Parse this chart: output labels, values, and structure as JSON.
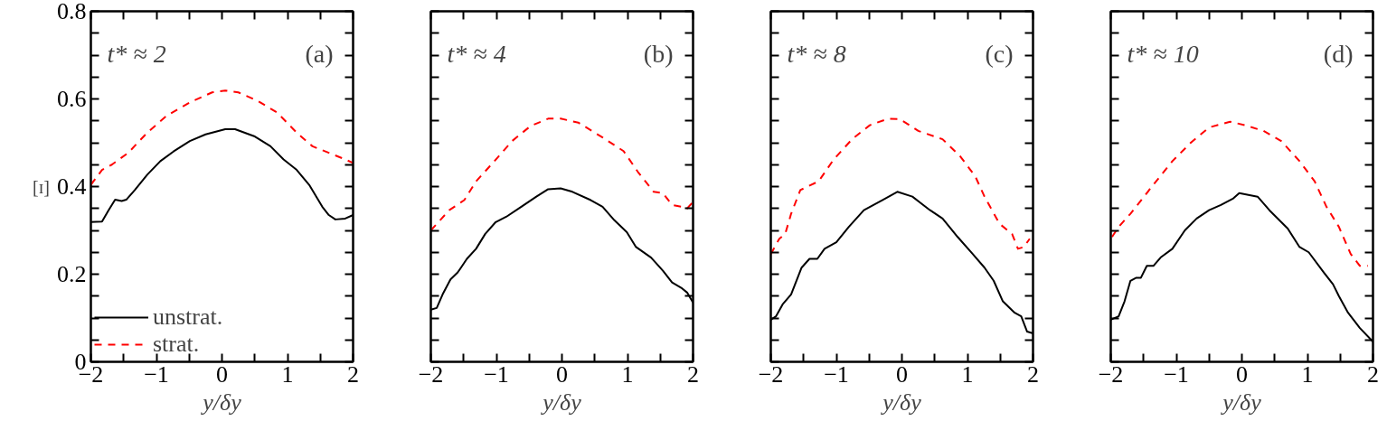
{
  "chart_data": [
    {
      "type": "line",
      "ylabel": "[ɪ]",
      "xlabel": "y/δy",
      "annotations": [
        "t* ≈ 2",
        "(a)"
      ],
      "xlim": [
        -2,
        2
      ],
      "ylim": [
        0,
        0.8
      ],
      "xticks": [
        -2,
        {
          "value": -1.5,
          "label": null
        },
        -1,
        {
          "value": -0.5,
          "label": null
        },
        0,
        {
          "value": 0.5,
          "label": null
        },
        1,
        {
          "value": 1.5,
          "label": null
        },
        2
      ],
      "yticks": [
        0,
        {
          "value": 0.05,
          "label": null
        },
        {
          "value": 0.1,
          "label": null
        },
        {
          "value": 0.15,
          "label": null
        },
        0.2,
        {
          "value": 0.25,
          "label": null
        },
        {
          "value": 0.3,
          "label": null
        },
        {
          "value": 0.35,
          "label": null
        },
        0.4,
        {
          "value": 0.45,
          "label": null
        },
        {
          "value": 0.5,
          "label": null
        },
        {
          "value": 0.55,
          "label": null
        },
        0.6,
        {
          "value": 0.65,
          "label": null
        },
        {
          "value": 0.7,
          "label": null
        },
        {
          "value": 0.75,
          "label": null
        },
        0.8
      ],
      "grid": false,
      "legend": "bottom left",
      "series": [
        {
          "name": "unstrat.",
          "color": "#000000",
          "line_style": "solid",
          "x": [
            -2,
            -1.83,
            -1.73,
            -1.63,
            -1.53,
            -1.46,
            -1.33,
            -1.14,
            -0.94,
            -0.74,
            -0.49,
            -0.25,
            0.05,
            0.2,
            0.49,
            0.74,
            0.94,
            1.14,
            1.33,
            1.53,
            1.63,
            1.73,
            1.88,
            2
          ],
          "values": [
            0.319,
            0.32,
            0.346,
            0.37,
            0.367,
            0.37,
            0.392,
            0.427,
            0.458,
            0.48,
            0.504,
            0.519,
            0.531,
            0.531,
            0.515,
            0.492,
            0.462,
            0.438,
            0.404,
            0.354,
            0.335,
            0.325,
            0.327,
            0.335
          ]
        },
        {
          "name": "strat.",
          "color": "#ff0000",
          "line_style": "dashed",
          "x": [
            -2,
            -1.83,
            -1.68,
            -1.43,
            -1.14,
            -0.84,
            -0.49,
            -0.15,
            0.05,
            0.25,
            0.54,
            0.84,
            1.14,
            1.38,
            1.63,
            1.83,
            2
          ],
          "values": [
            0.404,
            0.438,
            0.45,
            0.477,
            0.523,
            0.562,
            0.592,
            0.615,
            0.619,
            0.615,
            0.596,
            0.569,
            0.523,
            0.492,
            0.477,
            0.465,
            0.454
          ]
        }
      ]
    },
    {
      "type": "line",
      "xlabel": "y/δy",
      "annotations": [
        "t* ≈ 4",
        "(b)"
      ],
      "xlim": [
        -2,
        2
      ],
      "ylim": [
        0,
        0.8
      ],
      "tick_labels": "x",
      "xticks": [
        -2,
        {
          "value": -1.5,
          "label": null
        },
        -1,
        {
          "value": -0.5,
          "label": null
        },
        0,
        {
          "value": 0.5,
          "label": null
        },
        1,
        {
          "value": 1.5,
          "label": null
        },
        2
      ],
      "yticks": [
        0,
        {
          "value": 0.05,
          "label": null
        },
        {
          "value": 0.1,
          "label": null
        },
        {
          "value": 0.15,
          "label": null
        },
        0.2,
        {
          "value": 0.25,
          "label": null
        },
        {
          "value": 0.3,
          "label": null
        },
        {
          "value": 0.35,
          "label": null
        },
        0.4,
        {
          "value": 0.45,
          "label": null
        },
        {
          "value": 0.5,
          "label": null
        },
        {
          "value": 0.55,
          "label": null
        },
        0.6,
        {
          "value": 0.65,
          "label": null
        },
        {
          "value": 0.7,
          "label": null
        },
        {
          "value": 0.75,
          "label": null
        },
        0.8
      ],
      "grid": false,
      "series": [
        {
          "color": "#000000",
          "line_style": "solid",
          "x": [
            -2,
            -1.91,
            -1.82,
            -1.7,
            -1.59,
            -1.45,
            -1.31,
            -1.17,
            -1.01,
            -0.85,
            -0.62,
            -0.39,
            -0.21,
            -0.02,
            0.16,
            0.44,
            0.62,
            0.8,
            0.99,
            1.13,
            1.36,
            1.54,
            1.68,
            1.82,
            1.91,
            2
          ],
          "values": [
            0.119,
            0.123,
            0.154,
            0.188,
            0.204,
            0.235,
            0.258,
            0.292,
            0.319,
            0.331,
            0.354,
            0.377,
            0.394,
            0.396,
            0.388,
            0.369,
            0.354,
            0.323,
            0.296,
            0.262,
            0.238,
            0.208,
            0.181,
            0.169,
            0.158,
            0.135
          ]
        },
        {
          "color": "#ff0000",
          "line_style": "dashed",
          "x": [
            -2,
            -1.86,
            -1.72,
            -1.49,
            -1.31,
            -1.03,
            -0.76,
            -0.48,
            -0.21,
            -0.02,
            0.25,
            0.62,
            0.94,
            1.17,
            1.4,
            1.54,
            1.68,
            1.82,
            1.91,
            2
          ],
          "values": [
            0.3,
            0.323,
            0.346,
            0.369,
            0.412,
            0.458,
            0.504,
            0.538,
            0.555,
            0.555,
            0.546,
            0.512,
            0.481,
            0.431,
            0.388,
            0.385,
            0.358,
            0.354,
            0.35,
            0.365
          ]
        }
      ]
    },
    {
      "type": "line",
      "xlabel": "y/δy",
      "annotations": [
        "t* ≈ 8",
        "(c)"
      ],
      "xlim": [
        -2,
        2
      ],
      "ylim": [
        0,
        0.8
      ],
      "tick_labels": "x",
      "xticks": [
        -2,
        {
          "value": -1.5,
          "label": null
        },
        -1,
        {
          "value": -0.5,
          "label": null
        },
        0,
        {
          "value": 0.5,
          "label": null
        },
        1,
        {
          "value": 1.5,
          "label": null
        },
        2
      ],
      "yticks": [
        0,
        {
          "value": 0.05,
          "label": null
        },
        {
          "value": 0.1,
          "label": null
        },
        {
          "value": 0.15,
          "label": null
        },
        0.2,
        {
          "value": 0.25,
          "label": null
        },
        {
          "value": 0.3,
          "label": null
        },
        {
          "value": 0.35,
          "label": null
        },
        0.4,
        {
          "value": 0.45,
          "label": null
        },
        {
          "value": 0.5,
          "label": null
        },
        {
          "value": 0.55,
          "label": null
        },
        0.6,
        {
          "value": 0.65,
          "label": null
        },
        {
          "value": 0.7,
          "label": null
        },
        {
          "value": 0.75,
          "label": null
        },
        0.8
      ],
      "grid": false,
      "series": [
        {
          "color": "#000000",
          "line_style": "solid",
          "x": [
            -2,
            -1.92,
            -1.82,
            -1.69,
            -1.53,
            -1.41,
            -1.29,
            -1.18,
            -1.0,
            -0.81,
            -0.58,
            -0.3,
            -0.07,
            0.16,
            0.43,
            0.62,
            0.85,
            1.08,
            1.26,
            1.4,
            1.54,
            1.72,
            1.82,
            1.91,
            2
          ],
          "values": [
            0.096,
            0.104,
            0.131,
            0.154,
            0.215,
            0.235,
            0.235,
            0.258,
            0.273,
            0.308,
            0.346,
            0.369,
            0.388,
            0.377,
            0.346,
            0.327,
            0.285,
            0.246,
            0.215,
            0.185,
            0.138,
            0.112,
            0.104,
            0.069,
            0.065
          ]
        },
        {
          "color": "#ff0000",
          "line_style": "dashed",
          "x": [
            -2,
            -1.87,
            -1.78,
            -1.69,
            -1.55,
            -1.27,
            -1.04,
            -0.76,
            -0.49,
            -0.21,
            -0.03,
            0.25,
            0.62,
            0.89,
            1.12,
            1.26,
            1.49,
            1.68,
            1.77,
            1.86,
            1.95
          ],
          "values": [
            0.246,
            0.281,
            0.292,
            0.338,
            0.392,
            0.412,
            0.462,
            0.508,
            0.54,
            0.555,
            0.554,
            0.527,
            0.508,
            0.469,
            0.423,
            0.377,
            0.315,
            0.292,
            0.258,
            0.262,
            0.281
          ]
        }
      ]
    },
    {
      "type": "line",
      "xlabel": "y/δy",
      "annotations": [
        "t* ≈ 10",
        "(d)"
      ],
      "xlim": [
        -2,
        2
      ],
      "ylim": [
        0,
        0.8
      ],
      "tick_labels": "x",
      "xticks": [
        -2,
        {
          "value": -1.5,
          "label": null
        },
        -1,
        {
          "value": -0.5,
          "label": null
        },
        0,
        {
          "value": 0.5,
          "label": null
        },
        1,
        {
          "value": 1.5,
          "label": null
        },
        2
      ],
      "yticks": [
        0,
        {
          "value": 0.05,
          "label": null
        },
        {
          "value": 0.1,
          "label": null
        },
        {
          "value": 0.15,
          "label": null
        },
        0.2,
        {
          "value": 0.25,
          "label": null
        },
        {
          "value": 0.3,
          "label": null
        },
        {
          "value": 0.35,
          "label": null
        },
        0.4,
        {
          "value": 0.45,
          "label": null
        },
        {
          "value": 0.5,
          "label": null
        },
        {
          "value": 0.55,
          "label": null
        },
        0.6,
        {
          "value": 0.65,
          "label": null
        },
        {
          "value": 0.7,
          "label": null
        },
        {
          "value": 0.75,
          "label": null
        },
        0.8
      ],
      "grid": false,
      "series": [
        {
          "color": "#000000",
          "line_style": "solid",
          "x": [
            -2,
            -1.88,
            -1.79,
            -1.7,
            -1.61,
            -1.54,
            -1.45,
            -1.35,
            -1.24,
            -1.06,
            -0.87,
            -0.69,
            -0.5,
            -0.32,
            -0.13,
            -0.04,
            0.24,
            0.42,
            0.7,
            0.88,
            1.02,
            1.25,
            1.39,
            1.48,
            1.62,
            1.8,
            2
          ],
          "values": [
            0.096,
            0.104,
            0.138,
            0.185,
            0.192,
            0.192,
            0.219,
            0.219,
            0.238,
            0.258,
            0.3,
            0.327,
            0.346,
            0.358,
            0.373,
            0.385,
            0.377,
            0.346,
            0.304,
            0.262,
            0.25,
            0.204,
            0.177,
            0.15,
            0.112,
            0.077,
            0.046
          ]
        },
        {
          "color": "#ff0000",
          "line_style": "dashed",
          "x": [
            -1.98,
            -1.88,
            -1.7,
            -1.33,
            -1.06,
            -0.78,
            -0.5,
            -0.18,
            0.05,
            0.33,
            0.6,
            0.88,
            1.11,
            1.29,
            1.48,
            1.66,
            1.8,
            1.92
          ],
          "values": [
            0.285,
            0.308,
            0.338,
            0.408,
            0.458,
            0.5,
            0.535,
            0.548,
            0.54,
            0.527,
            0.504,
            0.458,
            0.412,
            0.354,
            0.308,
            0.246,
            0.219,
            0.219
          ]
        }
      ]
    }
  ]
}
